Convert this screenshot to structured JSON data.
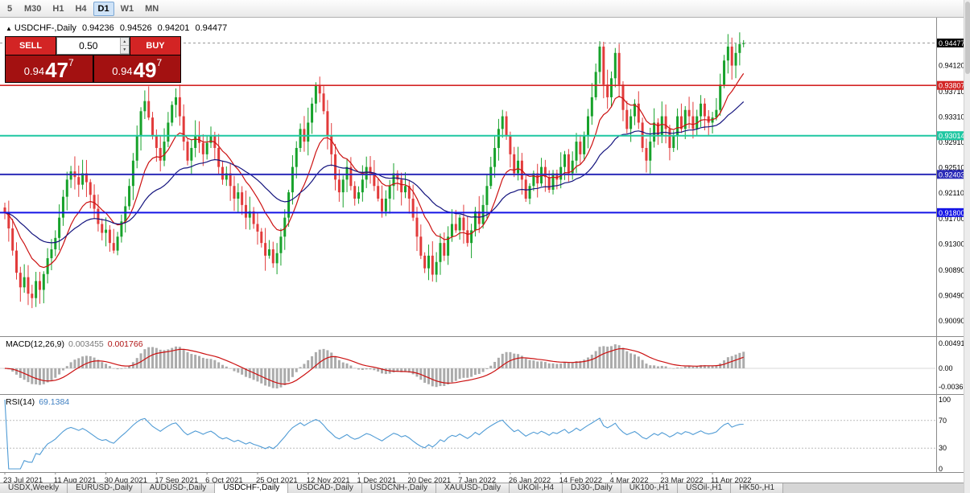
{
  "colors": {
    "up": "#17a22b",
    "down": "#e23b3b",
    "ma_fast": "#cc1111",
    "ma_slow": "#14147e",
    "macd_hist": "#ababab",
    "macd_signal": "#cc1111",
    "rsi_line": "#4f9bd5",
    "level_red": "#d32525",
    "level_teal": "#1fc7a2",
    "level_navy": "#2b2bb8",
    "level_blue": "#1414e6",
    "current_price_bg": "#000000",
    "sell_buy_button": "#d32424",
    "price_block": "#a31111"
  },
  "toolbar": {
    "timeframes": [
      {
        "label": "5",
        "active": false
      },
      {
        "label": "M30",
        "active": false
      },
      {
        "label": "H1",
        "active": false
      },
      {
        "label": "H4",
        "active": false
      },
      {
        "label": "D1",
        "active": true
      },
      {
        "label": "W1",
        "active": false
      },
      {
        "label": "MN",
        "active": false
      }
    ]
  },
  "chart_header": {
    "collapse_icon": "▲",
    "title": "USDCHF-,Daily",
    "open": "0.94236",
    "high": "0.94526",
    "low": "0.94201",
    "close": "0.94477"
  },
  "trade_panel": {
    "sell_label": "SELL",
    "buy_label": "BUY",
    "volume": "0.50",
    "spinner_up": "▲",
    "spinner_down": "▼",
    "sell_price": {
      "big": "0.94",
      "pips": "47",
      "sup": "7"
    },
    "buy_price": {
      "big": "0.94",
      "pips": "49",
      "sup": "7"
    }
  },
  "price_axis": {
    "ticks": [
      "0.94120",
      "0.93710",
      "0.93310",
      "0.92910",
      "0.92510",
      "0.92110",
      "0.91700",
      "0.91300",
      "0.90890",
      "0.90490",
      "0.90090"
    ],
    "current": {
      "label": "0.94477",
      "price": 0.94477
    }
  },
  "levels": [
    {
      "label": "0.93807",
      "price": 0.93807,
      "color": "#d32525",
      "width": 1.6
    },
    {
      "label": "0.93014",
      "price": 0.93014,
      "color": "#1fc7a2",
      "width": 2
    },
    {
      "label": "0.92403",
      "price": 0.92403,
      "color": "#2b2bb8",
      "width": 2
    },
    {
      "label": "0.91800",
      "price": 0.918,
      "color": "#1414e6",
      "width": 2
    }
  ],
  "macd_panel": {
    "title": "MACD(12,26,9)",
    "main_value": "0.003455",
    "signal_value": "0.001766",
    "axis_top": "0.004913",
    "axis_zero": "0.00",
    "axis_bottom": "-0.00361"
  },
  "rsi_panel": {
    "title": "RSI(14)",
    "value": "69.1384",
    "axis": [
      {
        "label": "100",
        "v": 100
      },
      {
        "label": "70",
        "v": 70
      },
      {
        "label": "30",
        "v": 30
      },
      {
        "label": "0",
        "v": 0
      }
    ],
    "bands": [
      70,
      30
    ]
  },
  "date_axis": [
    "23 Jul 2021",
    "11 Aug 2021",
    "30 Aug 2021",
    "17 Sep 2021",
    "6 Oct 2021",
    "25 Oct 2021",
    "12 Nov 2021",
    "1 Dec 2021",
    "20 Dec 2021",
    "7 Jan 2022",
    "26 Jan 2022",
    "14 Feb 2022",
    "4 Mar 2022",
    "23 Mar 2022",
    "11 Apr 2022"
  ],
  "tabs": [
    {
      "label": "USDX,Weekly",
      "active": false
    },
    {
      "label": "EURUSD-,Daily",
      "active": false
    },
    {
      "label": "AUDUSD-,Daily",
      "active": false
    },
    {
      "label": "USDCHF-,Daily",
      "active": true
    },
    {
      "label": "USDCAD-,Daily",
      "active": false
    },
    {
      "label": "USDCNH-,Daily",
      "active": false
    },
    {
      "label": "XAUUSD-,Daily",
      "active": false
    },
    {
      "label": "UKOil-,H4",
      "active": false
    },
    {
      "label": "DJ30-,Daily",
      "active": false
    },
    {
      "label": "UK100-,H1",
      "active": false
    },
    {
      "label": "USOil-,H1",
      "active": false
    },
    {
      "label": "HK50-,H1",
      "active": false
    }
  ],
  "chart_data": {
    "type": "candlestick",
    "symbol": "USDCHF-",
    "timeframe": "Daily",
    "title": "USDCHF-,Daily",
    "price_range": [
      0.899,
      0.948
    ],
    "x_dates": [
      "23 Jul 2021",
      "11 Aug 2021",
      "30 Aug 2021",
      "17 Sep 2021",
      "6 Oct 2021",
      "25 Oct 2021",
      "12 Nov 2021",
      "1 Dec 2021",
      "20 Dec 2021",
      "7 Jan 2022",
      "26 Jan 2022",
      "14 Feb 2022",
      "4 Mar 2022",
      "23 Mar 2022",
      "11 Apr 2022"
    ],
    "candles_per_label": 13,
    "closes": [
      0.918,
      0.9155,
      0.912,
      0.9085,
      0.9062,
      0.9078,
      0.9052,
      0.9045,
      0.9072,
      0.9058,
      0.9083,
      0.9108,
      0.9122,
      0.914,
      0.9172,
      0.9205,
      0.9232,
      0.9245,
      0.9236,
      0.9224,
      0.9242,
      0.9228,
      0.9208,
      0.9186,
      0.9162,
      0.9148,
      0.9153,
      0.9132,
      0.912,
      0.9142,
      0.9166,
      0.919,
      0.9222,
      0.9262,
      0.9302,
      0.934,
      0.9356,
      0.933,
      0.9302,
      0.9282,
      0.9262,
      0.9292,
      0.9322,
      0.935,
      0.9362,
      0.9332,
      0.9292,
      0.9262,
      0.9282,
      0.9302,
      0.929,
      0.9272,
      0.929,
      0.9302,
      0.9282,
      0.9252,
      0.9232,
      0.9242,
      0.9222,
      0.9202,
      0.9212,
      0.9192,
      0.9172,
      0.9182,
      0.9162,
      0.915,
      0.9132,
      0.9112,
      0.9122,
      0.91,
      0.9116,
      0.9142,
      0.9172,
      0.9212,
      0.9252,
      0.9282,
      0.9312,
      0.9292,
      0.9322,
      0.9352,
      0.938,
      0.9368,
      0.934,
      0.9302,
      0.9272,
      0.9232,
      0.9212,
      0.9232,
      0.9252,
      0.9222,
      0.9202,
      0.9212,
      0.9232,
      0.9252,
      0.9242,
      0.9222,
      0.9202,
      0.9182,
      0.9202,
      0.9222,
      0.9242,
      0.9232,
      0.9212,
      0.9222,
      0.9202,
      0.9172,
      0.9142,
      0.9112,
      0.9092,
      0.9112,
      0.9082,
      0.9102,
      0.9132,
      0.9112,
      0.9142,
      0.9162,
      0.9152,
      0.9172,
      0.9152,
      0.9132,
      0.9152,
      0.9182,
      0.9162,
      0.9192,
      0.9222,
      0.9252,
      0.9282,
      0.9312,
      0.9332,
      0.9302,
      0.9272,
      0.9242,
      0.9262,
      0.9232,
      0.9202,
      0.9222,
      0.9242,
      0.9226,
      0.9252,
      0.9236,
      0.9216,
      0.9242,
      0.9232,
      0.9252,
      0.9272,
      0.9242,
      0.9262,
      0.9292,
      0.9272,
      0.9302,
      0.9332,
      0.9362,
      0.9402,
      0.9442,
      0.9382,
      0.9362,
      0.9392,
      0.9432,
      0.9382,
      0.9342,
      0.9312,
      0.9332,
      0.9352,
      0.9322,
      0.9282,
      0.9262,
      0.9292,
      0.9322,
      0.9302,
      0.9332,
      0.9312,
      0.9282,
      0.9302,
      0.9332,
      0.9312,
      0.9342,
      0.9332,
      0.9312,
      0.9332,
      0.9352,
      0.9332,
      0.9322,
      0.933,
      0.9342,
      0.9382,
      0.942,
      0.9442,
      0.9412,
      0.9432,
      0.9446,
      0.94477
    ],
    "last_ohlc": {
      "open": 0.94236,
      "high": 0.94526,
      "low": 0.94201,
      "close": 0.94477
    },
    "overlays": [
      {
        "name": "ma-fast",
        "type": "ema",
        "period": 12,
        "color": "#cc1111"
      },
      {
        "name": "ma-slow",
        "type": "ema",
        "period": 34,
        "color": "#14147e"
      }
    ],
    "horizontal_levels": [
      0.93807,
      0.93014,
      0.92403,
      0.918
    ],
    "indicators": [
      {
        "type": "macd",
        "fast": 12,
        "slow": 26,
        "signal": 9,
        "last_main": 0.003455,
        "last_signal": 0.001766,
        "axis": [
          0.004913,
          0.0,
          -0.00361
        ]
      },
      {
        "type": "rsi",
        "period": 14,
        "last": 69.1384,
        "range": [
          0,
          100
        ],
        "bands": [
          30,
          70
        ]
      }
    ]
  }
}
